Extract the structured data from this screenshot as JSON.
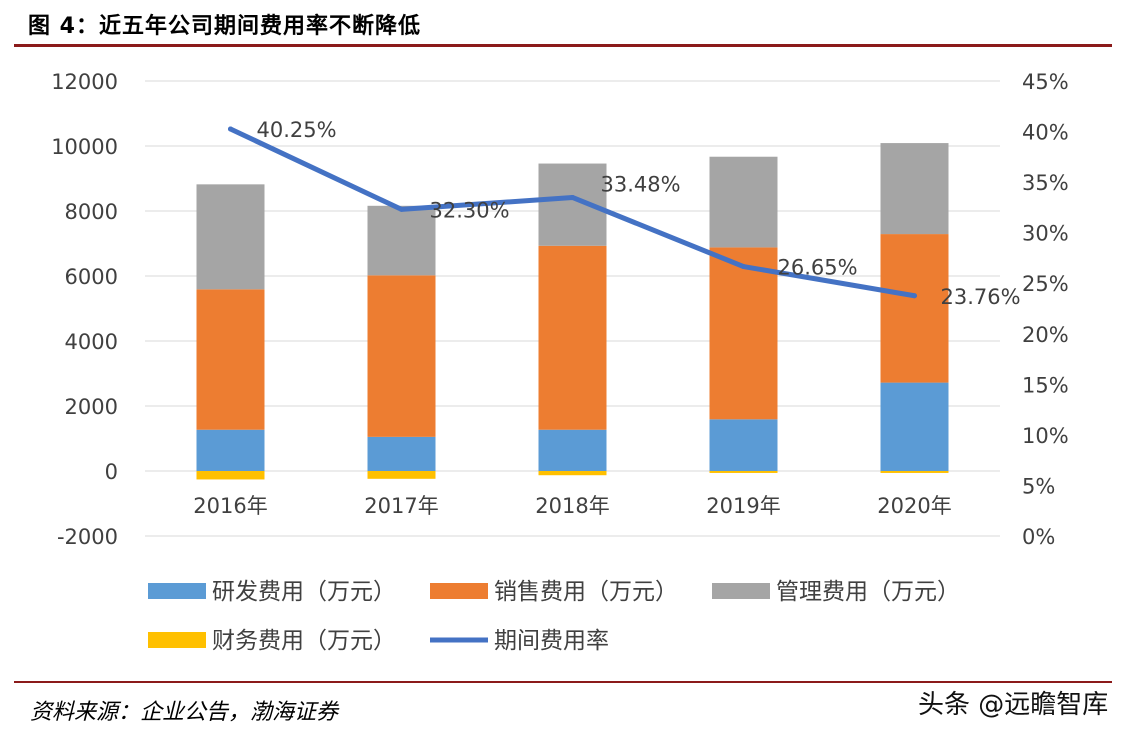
{
  "figure": {
    "title": "图 4：近五年公司期间费用率不断降低",
    "source": "资料来源：企业公告，渤海证券",
    "watermark": "头条 @远瞻智库"
  },
  "chart_data": {
    "type": "bar",
    "stacked": true,
    "title": "",
    "categories": [
      "2016年",
      "2017年",
      "2018年",
      "2019年",
      "2020年"
    ],
    "ylim": [
      -2000,
      12000
    ],
    "yticks": [
      -2000,
      0,
      2000,
      4000,
      6000,
      8000,
      10000,
      12000
    ],
    "y2lim": [
      0,
      45
    ],
    "y2ticks": [
      "0%",
      "5%",
      "10%",
      "15%",
      "20%",
      "25%",
      "30%",
      "35%",
      "40%",
      "45%"
    ],
    "grid": true,
    "legend_position": "bottom",
    "series": [
      {
        "name": "研发费用（万元）",
        "type": "bar",
        "color": "#5b9bd5",
        "values": [
          1270,
          1050,
          1270,
          1590,
          2720
        ]
      },
      {
        "name": "销售费用（万元）",
        "type": "bar",
        "color": "#ed7d31",
        "values": [
          4320,
          4970,
          5660,
          5290,
          4570
        ]
      },
      {
        "name": "管理费用（万元）",
        "type": "bar",
        "color": "#a5a5a5",
        "values": [
          3230,
          2140,
          2530,
          2790,
          2800
        ]
      },
      {
        "name": "财务费用（万元）",
        "type": "bar",
        "color": "#ffc000",
        "values": [
          -260,
          -240,
          -130,
          -60,
          -60
        ]
      },
      {
        "name": "期间费用率",
        "type": "line",
        "axis": "right",
        "color": "#4472c4",
        "values": [
          40.25,
          32.3,
          33.48,
          26.65,
          23.76
        ],
        "labels": [
          "40.25%",
          "32.30%",
          "33.48%",
          "26.65%",
          "23.76%"
        ]
      }
    ]
  }
}
